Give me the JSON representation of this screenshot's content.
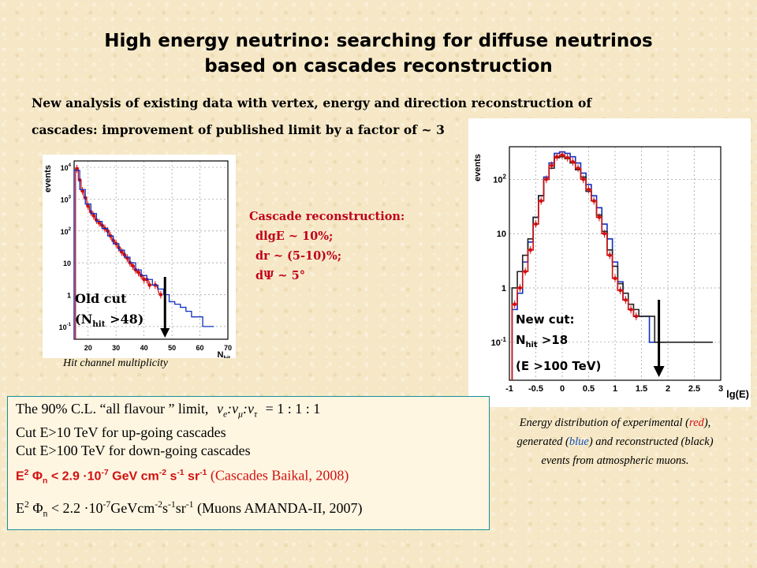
{
  "header": {
    "title_line1": "High energy neutrino:  searching for diffuse neutrinos",
    "title_line2": "based on cascades reconstruction",
    "subtitle_line1": "New analysis of existing data with vertex, energy and direction reconstruction of",
    "subtitle_line2": "cascades: improvement of  published limit by a factor of ~ 3"
  },
  "reconstruction": {
    "heading": "Cascade reconstruction:",
    "line1": "dlgE ~ 10%;",
    "line2": "dr ~ (5-10)%;",
    "line3": "dΨ ~ 5°"
  },
  "left_plot": {
    "caption": "Hit channel multiplicity",
    "annot_line1": "Old cut",
    "annot_line2_pre": "(N",
    "annot_line2_sub": "hit",
    "annot_line2_post": " >48)"
  },
  "right_plot": {
    "annot_line1": "New cut:",
    "annot_line2_pre": "N",
    "annot_line2_sub": "hit",
    "annot_line2_post": " >18",
    "annot_line3": "(E >100 TeV)",
    "caption_line1_pre": "Energy distribution of experimental (",
    "caption_red": "red",
    "caption_line1_post": "),",
    "caption_line2_pre": "generated (",
    "caption_blue": "blue",
    "caption_line2_post": ") and reconstructed (black)",
    "caption_line3": "events from atmospheric muons."
  },
  "limits": {
    "line1_pre": "The 90% C.L. “all flavour ” limit,",
    "line1_ratio": "= 1 : 1 : 1",
    "line2": "Cut E>10 TeV for up-going cascades",
    "line3": "Cut E>100 TeV for down-going cascades",
    "line4_value": "< 2.9 ·10",
    "line4_exp": "-7",
    "line4_units": "GeV cm",
    "line4_ref": "(Cascades Baikal, 2008)",
    "line5_value": "< 2.2 ·10",
    "line5_exp": "-7",
    "line5_units": "GeVcm",
    "line5_ref": "(Muons AMANDA-II, 2007)"
  },
  "chart_data": [
    {
      "type": "bar",
      "xlabel": "N_hit",
      "ylabel": "events",
      "xlim": [
        15,
        70
      ],
      "ylog": true,
      "xticks": [
        20,
        30,
        40,
        50,
        60,
        70
      ],
      "yticks": [
        "10^4",
        "10^3",
        "10^2",
        "10",
        "1",
        "10^-1"
      ],
      "series": [
        {
          "color": "#d01010",
          "x": [
            16,
            17,
            18,
            19,
            20,
            21,
            22,
            23,
            24,
            25,
            26,
            27,
            28,
            29,
            30,
            31,
            32,
            33,
            34,
            35,
            36,
            37,
            38,
            39,
            40,
            41,
            42,
            44,
            46
          ],
          "values": [
            9000,
            4000,
            1800,
            1100,
            600,
            400,
            300,
            220,
            180,
            150,
            120,
            100,
            70,
            50,
            40,
            30,
            22,
            18,
            14,
            10,
            8,
            6,
            5,
            4,
            3,
            3,
            2,
            2,
            1
          ]
        },
        {
          "color": "#1030c0",
          "x": [
            16,
            18,
            20,
            22,
            24,
            26,
            28,
            30,
            32,
            34,
            36,
            38,
            40,
            42,
            44,
            46,
            48,
            50,
            52,
            54,
            56,
            58,
            60,
            62,
            64
          ],
          "values": [
            8000,
            2000,
            700,
            350,
            200,
            120,
            70,
            40,
            25,
            15,
            10,
            6,
            4,
            3,
            2,
            1.5,
            1,
            0.6,
            0.5,
            0.4,
            0.3,
            0.2,
            0.2,
            0.1,
            0.1
          ]
        }
      ]
    },
    {
      "type": "bar",
      "xlabel": "lg(E)",
      "ylabel": "events",
      "xlim": [
        -1,
        3
      ],
      "ylog": true,
      "xticks": [
        "-1",
        "-0.5",
        "0",
        "0.5",
        "1",
        "1.5",
        "2",
        "2.5",
        "3"
      ],
      "yticks": [
        "10^2",
        "10",
        "1",
        "10^-1"
      ],
      "series": [
        {
          "color": "#1030c0",
          "x": [
            -0.9,
            -0.8,
            -0.7,
            -0.6,
            -0.5,
            -0.4,
            -0.3,
            -0.2,
            -0.1,
            0,
            0.1,
            0.2,
            0.3,
            0.4,
            0.5,
            0.6,
            0.7,
            0.8,
            0.9,
            1.0,
            1.1,
            1.2,
            1.3,
            1.4,
            1.5,
            1.6,
            1.7,
            1.8,
            1.9
          ],
          "values": [
            0.4,
            0.8,
            3,
            7,
            20,
            50,
            110,
            200,
            300,
            320,
            300,
            260,
            200,
            130,
            80,
            50,
            30,
            15,
            8,
            3,
            1.3,
            0.6,
            0.4,
            0.3,
            0.3,
            0.3,
            0.1,
            0.1,
            0.1
          ]
        },
        {
          "color": "#222222",
          "x": [
            -0.9,
            -0.8,
            -0.7,
            -0.6,
            -0.5,
            -0.4,
            -0.3,
            -0.2,
            -0.1,
            0,
            0.1,
            0.2,
            0.3,
            0.4,
            0.5,
            0.6,
            0.7,
            0.8,
            0.9,
            1.0,
            1.1,
            1.2,
            1.3,
            1.4,
            1.5,
            1.6,
            1.7,
            1.8,
            1.9,
            2.0,
            2.2,
            2.4,
            2.6,
            2.8
          ],
          "values": [
            1,
            2,
            4,
            8,
            20,
            50,
            100,
            160,
            250,
            260,
            240,
            200,
            150,
            110,
            60,
            40,
            22,
            11,
            5,
            2.5,
            1.2,
            0.8,
            0.5,
            0.4,
            0.3,
            0.3,
            0.3,
            0.1,
            0.1,
            0.1,
            0.1,
            0.1,
            0.1,
            0.1
          ]
        },
        {
          "color": "#d01010",
          "x": [
            -0.9,
            -0.8,
            -0.7,
            -0.6,
            -0.5,
            -0.4,
            -0.3,
            -0.2,
            -0.1,
            0,
            0.1,
            0.2,
            0.3,
            0.4,
            0.5,
            0.6,
            0.7,
            0.8,
            0.9,
            1.0,
            1.1,
            1.2,
            1.3,
            1.4
          ],
          "values": [
            0.5,
            1,
            2,
            5,
            15,
            40,
            100,
            180,
            260,
            280,
            250,
            210,
            160,
            100,
            65,
            40,
            20,
            10,
            4,
            1.5,
            0.9,
            0.6,
            0.4,
            0.3
          ]
        }
      ]
    }
  ]
}
